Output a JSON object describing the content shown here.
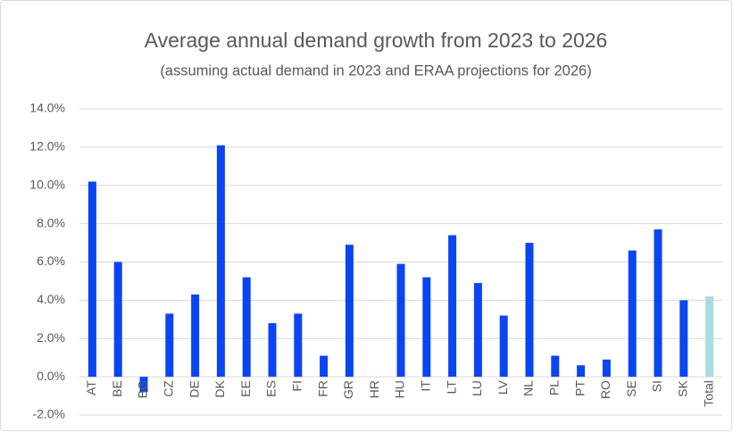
{
  "chart_data": {
    "type": "bar",
    "title": "Average annual demand growth from 2023 to 2026",
    "subtitle": "(assuming actual demand in 2023 and ERAA projections for 2026)",
    "categories": [
      "AT",
      "BE",
      "BG",
      "CZ",
      "DE",
      "DK",
      "EE",
      "ES",
      "FI",
      "FR",
      "GR",
      "HR",
      "HU",
      "IT",
      "LT",
      "LU",
      "LV",
      "NL",
      "PL",
      "PT",
      "RO",
      "SE",
      "SI",
      "SK",
      "Total"
    ],
    "values": [
      10.2,
      6.0,
      -0.8,
      3.3,
      4.3,
      12.1,
      5.2,
      2.8,
      3.3,
      1.1,
      6.9,
      0,
      5.9,
      5.2,
      7.4,
      4.9,
      3.2,
      7.0,
      1.1,
      0.6,
      0.9,
      6.6,
      7.7,
      4.0,
      4.2
    ],
    "colors": [
      "#0b45f2",
      "#0b45f2",
      "#0b45f2",
      "#0b45f2",
      "#0b45f2",
      "#0b45f2",
      "#0b45f2",
      "#0b45f2",
      "#0b45f2",
      "#0b45f2",
      "#0b45f2",
      "#0b45f2",
      "#0b45f2",
      "#0b45f2",
      "#0b45f2",
      "#0b45f2",
      "#0b45f2",
      "#0b45f2",
      "#0b45f2",
      "#0b45f2",
      "#0b45f2",
      "#0b45f2",
      "#0b45f2",
      "#0b45f2",
      "#a8dbe6"
    ],
    "ylim": [
      -2,
      14
    ],
    "yticks": [
      {
        "value": -2,
        "label": "-2.0%"
      },
      {
        "value": 0,
        "label": "0.0%"
      },
      {
        "value": 2,
        "label": "2.0%"
      },
      {
        "value": 4,
        "label": "4.0%"
      },
      {
        "value": 6,
        "label": "6.0%"
      },
      {
        "value": 8,
        "label": "8.0%"
      },
      {
        "value": 10,
        "label": "10.0%"
      },
      {
        "value": 12,
        "label": "12.0%"
      },
      {
        "value": 14,
        "label": "14.0%"
      }
    ],
    "grid": true
  }
}
